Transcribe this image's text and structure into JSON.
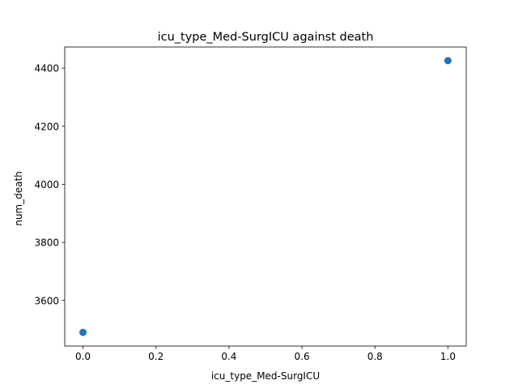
{
  "chart_data": {
    "type": "scatter",
    "title": "icu_type_Med-SurgICU against death",
    "xlabel": "icu_type_Med-SurgICU",
    "ylabel": "num_death",
    "x": [
      0.0,
      1.0
    ],
    "y": [
      3490,
      4426
    ],
    "xlim": [
      -0.05,
      1.05
    ],
    "ylim": [
      3443,
      4473
    ],
    "xticks": [
      0.0,
      0.2,
      0.4,
      0.6,
      0.8,
      1.0
    ],
    "xtick_labels": [
      "0.0",
      "0.2",
      "0.4",
      "0.6",
      "0.8",
      "1.0"
    ],
    "yticks": [
      3600,
      3800,
      4000,
      4200,
      4400
    ],
    "ytick_labels": [
      "3600",
      "3800",
      "4000",
      "4200",
      "4400"
    ],
    "grid": false,
    "marker_color": "#1f77b4"
  }
}
